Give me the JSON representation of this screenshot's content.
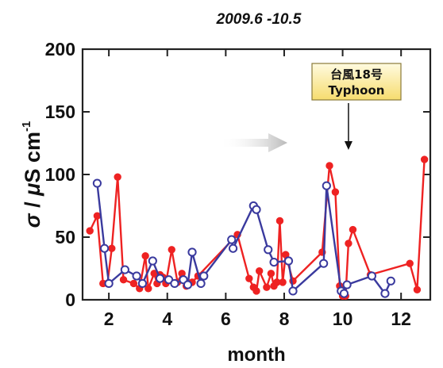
{
  "chart_data": {
    "type": "line",
    "title": "2009.6 -10.5",
    "xlabel": "month",
    "ylabel": "σ / μS cm-1",
    "xlim": [
      1.1,
      13.0
    ],
    "ylim": [
      0,
      200
    ],
    "xticks": [
      "2",
      "4",
      "6",
      "8",
      "10",
      "12"
    ],
    "yticks": [
      "0",
      "50",
      "100",
      "150",
      "200"
    ],
    "grid": false,
    "annotation": {
      "line1": "台風18号",
      "line2": "Typhoon",
      "x": 10.2
    },
    "series": [
      {
        "color": "#ee2222",
        "marker": "filled-circle",
        "points": [
          [
            1.35,
            55
          ],
          [
            1.6,
            67
          ],
          [
            1.8,
            13
          ],
          [
            1.95,
            13
          ],
          [
            2.1,
            41
          ],
          [
            2.3,
            98
          ],
          [
            2.5,
            16
          ],
          [
            2.85,
            13
          ],
          [
            3.05,
            9
          ],
          [
            3.25,
            35
          ],
          [
            3.35,
            9
          ],
          [
            3.55,
            21
          ],
          [
            3.65,
            13
          ],
          [
            3.75,
            20
          ],
          [
            3.85,
            18
          ],
          [
            3.95,
            13
          ],
          [
            4.15,
            40
          ],
          [
            4.35,
            14
          ],
          [
            4.5,
            21
          ],
          [
            4.65,
            11
          ],
          [
            4.85,
            14
          ],
          [
            5.05,
            19
          ],
          [
            6.4,
            52
          ],
          [
            6.8,
            17
          ],
          [
            6.95,
            10
          ],
          [
            7.05,
            7
          ],
          [
            7.15,
            23
          ],
          [
            7.4,
            10
          ],
          [
            7.55,
            21
          ],
          [
            7.65,
            11
          ],
          [
            7.75,
            14
          ],
          [
            7.85,
            63
          ],
          [
            7.95,
            14
          ],
          [
            8.05,
            36
          ],
          [
            8.3,
            15
          ],
          [
            9.3,
            38
          ],
          [
            9.55,
            107
          ],
          [
            9.75,
            86
          ],
          [
            9.9,
            11
          ],
          [
            10.0,
            3
          ],
          [
            10.1,
            3
          ],
          [
            10.2,
            45
          ],
          [
            10.35,
            56
          ],
          [
            10.95,
            20
          ],
          [
            12.3,
            29
          ],
          [
            12.55,
            8
          ],
          [
            12.8,
            112
          ]
        ]
      },
      {
        "color": "#3a3a9e",
        "marker": "open-circle",
        "points": [
          [
            1.6,
            93
          ],
          [
            1.85,
            41
          ],
          [
            2.0,
            13
          ],
          [
            2.55,
            24
          ],
          [
            2.95,
            19
          ],
          [
            3.15,
            13
          ],
          [
            3.5,
            31
          ],
          [
            3.75,
            17
          ],
          [
            4.05,
            16
          ],
          [
            4.25,
            13
          ],
          [
            4.55,
            16
          ],
          [
            4.7,
            12
          ],
          [
            4.85,
            38
          ],
          [
            5.15,
            13
          ],
          [
            5.25,
            19
          ],
          [
            6.2,
            48
          ],
          [
            6.25,
            41
          ],
          [
            6.95,
            75
          ],
          [
            7.05,
            72
          ],
          [
            7.45,
            40
          ],
          [
            7.65,
            30
          ],
          [
            8.15,
            31
          ],
          [
            8.3,
            7
          ],
          [
            9.35,
            29
          ],
          [
            9.45,
            91
          ],
          [
            9.95,
            7
          ],
          [
            10.05,
            5
          ],
          [
            10.15,
            12
          ],
          [
            11.0,
            19
          ],
          [
            11.45,
            5
          ],
          [
            11.65,
            15
          ]
        ]
      }
    ]
  }
}
